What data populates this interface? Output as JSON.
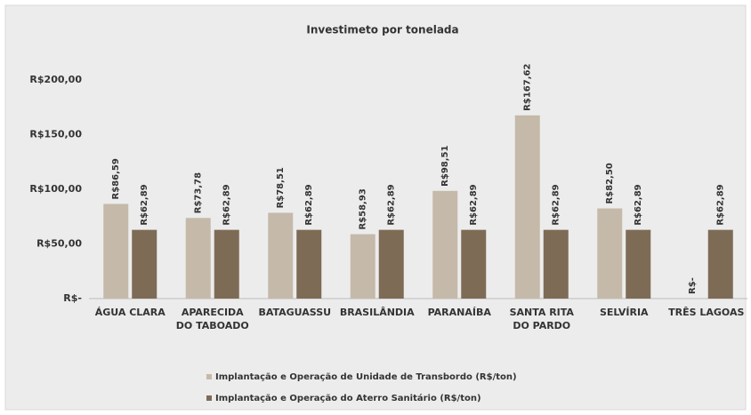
{
  "chart_data": {
    "type": "bar",
    "title": "Investimeto por tonelada",
    "categories": [
      "ÁGUA CLARA",
      "APARECIDA DO TABOADO",
      "BATAGUASSU",
      "BRASILÂNDIA",
      "PARANAÍBA",
      "SANTA RITA DO PARDO",
      "SELVÍRIA",
      "TRÊS LAGOAS"
    ],
    "series": [
      {
        "name": "Implantação e Operação de Unidade de Transbordo (R$/ton)",
        "color": "#c5b9a9",
        "values": [
          86.59,
          73.78,
          78.51,
          58.93,
          98.51,
          167.62,
          82.5,
          0
        ],
        "value_labels": [
          "R$86,59",
          "R$73,78",
          "R$78,51",
          "R$58,93",
          "R$98,51",
          "R$167,62",
          "R$82,50",
          "R$-"
        ]
      },
      {
        "name": "Implantação e Operação do Aterro Sanitário (R$/ton)",
        "color": "#7e6b56",
        "values": [
          62.89,
          62.89,
          62.89,
          62.89,
          62.89,
          62.89,
          62.89,
          62.89
        ],
        "value_labels": [
          "R$62,89",
          "R$62,89",
          "R$62,89",
          "R$62,89",
          "R$62,89",
          "R$62,89",
          "R$62,89",
          "R$62,89"
        ]
      }
    ],
    "ylim": [
      0,
      200
    ],
    "yticks": [
      {
        "value": 0,
        "label": "R$-"
      },
      {
        "value": 50,
        "label": "R$50,00"
      },
      {
        "value": 100,
        "label": "R$100,00"
      },
      {
        "value": 150,
        "label": "R$150,00"
      },
      {
        "value": 200,
        "label": "R$200,00"
      }
    ],
    "grid": false
  }
}
